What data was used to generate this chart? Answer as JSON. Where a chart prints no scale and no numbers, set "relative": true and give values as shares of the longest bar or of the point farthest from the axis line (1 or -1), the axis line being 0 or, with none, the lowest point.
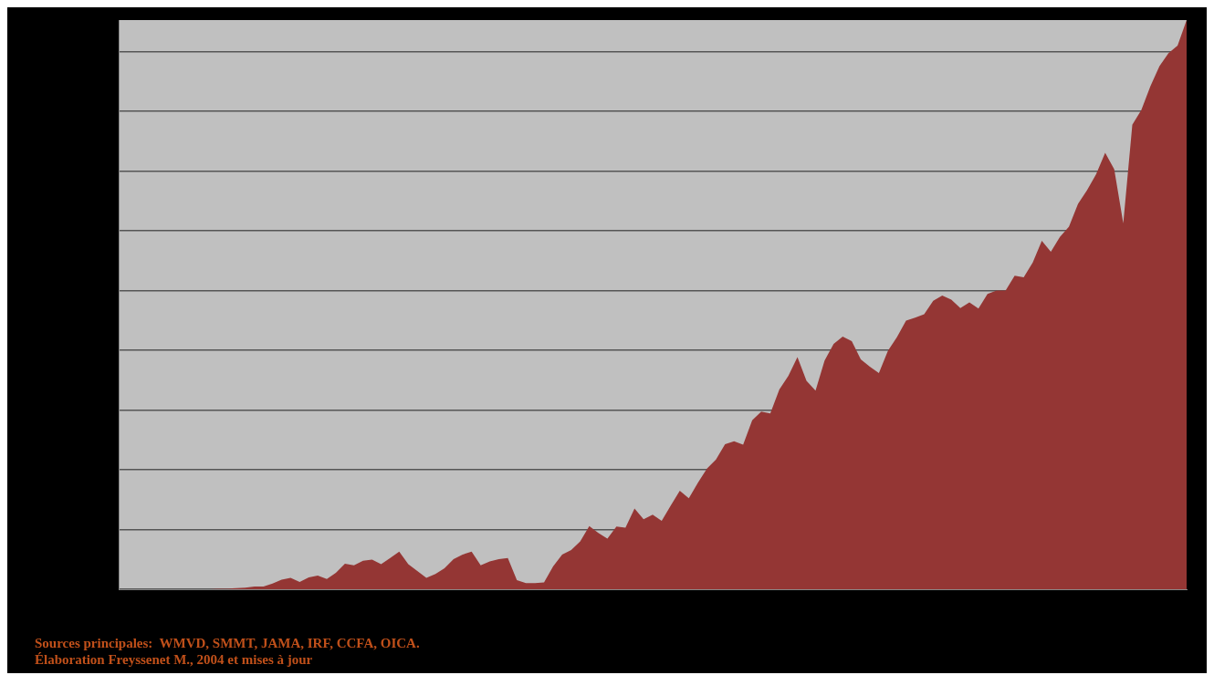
{
  "chart_data": {
    "type": "area",
    "relative": true,
    "grid": "y",
    "color": "#943634",
    "categories": [
      null,
      null,
      null,
      null,
      null,
      null,
      null,
      null,
      null,
      null,
      null,
      null,
      null,
      null,
      null,
      null,
      null,
      null,
      null,
      null,
      null,
      null,
      null,
      null,
      null,
      null,
      null,
      null,
      null,
      null,
      null,
      null,
      null,
      null,
      null,
      null,
      null,
      null,
      null,
      null,
      null,
      null,
      null,
      null,
      null,
      null,
      null,
      null,
      null,
      null,
      null,
      null,
      null,
      null,
      null,
      null,
      null,
      null,
      null,
      null,
      null,
      null,
      null,
      null,
      null,
      null,
      null,
      null,
      null,
      null,
      null,
      null,
      null,
      null,
      null,
      null,
      null,
      null,
      null,
      null,
      null,
      null,
      null,
      null,
      null,
      null,
      null,
      null,
      null,
      null,
      null,
      null,
      null,
      null,
      null,
      null,
      null,
      null,
      null,
      null,
      null,
      null,
      null,
      null,
      null,
      null,
      null,
      null,
      null,
      null,
      null,
      null,
      null,
      null,
      null,
      null,
      null,
      null,
      null
    ],
    "values": [
      0,
      0,
      0,
      0,
      0,
      0,
      0,
      0,
      0,
      0,
      0,
      0.001,
      0.001,
      0.002,
      0.003,
      0.005,
      0.005,
      0.01,
      0.017,
      0.02,
      0.013,
      0.021,
      0.024,
      0.018,
      0.029,
      0.045,
      0.042,
      0.05,
      0.052,
      0.044,
      0.055,
      0.066,
      0.044,
      0.032,
      0.02,
      0.027,
      0.037,
      0.053,
      0.061,
      0.066,
      0.042,
      0.049,
      0.053,
      0.055,
      0.016,
      0.011,
      0.011,
      0.012,
      0.04,
      0.061,
      0.069,
      0.084,
      0.111,
      0.099,
      0.089,
      0.11,
      0.108,
      0.142,
      0.123,
      0.131,
      0.12,
      0.147,
      0.173,
      0.16,
      0.187,
      0.212,
      0.228,
      0.255,
      0.26,
      0.254,
      0.297,
      0.312,
      0.309,
      0.351,
      0.375,
      0.408,
      0.366,
      0.349,
      0.402,
      0.431,
      0.444,
      0.436,
      0.404,
      0.391,
      0.38,
      0.419,
      0.443,
      0.472,
      0.477,
      0.483,
      0.507,
      0.516,
      0.509,
      0.494,
      0.504,
      0.493,
      0.519,
      0.525,
      0.525,
      0.551,
      0.548,
      0.574,
      0.612,
      0.593,
      0.619,
      0.637,
      0.677,
      0.701,
      0.729,
      0.767,
      0.738,
      0.643,
      0.816,
      0.842,
      0.884,
      0.919,
      0.942,
      0.955,
      1
    ],
    "annotations": [
      "Sources principales:  WMVD, SMMT, JAMA, IRF, CCFA, OICA.",
      "Élaboration Freyssenet M., 2004 et mises à jour"
    ]
  }
}
